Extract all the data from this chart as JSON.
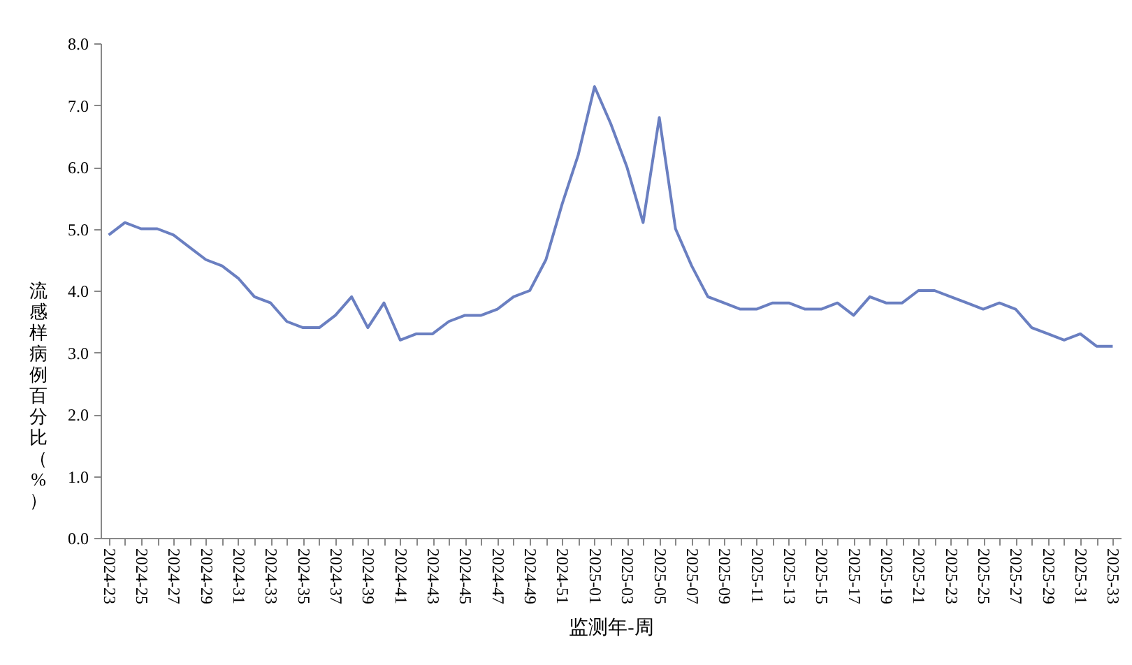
{
  "chart_data": {
    "type": "line",
    "xlabel": "监测年-周",
    "ylabel": "流感样病例百分比（%）",
    "categories": [
      "2024-23",
      null,
      "2024-25",
      null,
      "2024-27",
      null,
      "2024-29",
      null,
      "2024-31",
      null,
      "2024-33",
      null,
      "2024-35",
      null,
      "2024-37",
      null,
      "2024-39",
      null,
      "2024-41",
      null,
      "2024-43",
      null,
      "2024-45",
      null,
      "2024-47",
      null,
      "2024-49",
      null,
      "2024-51",
      null,
      "2025-01",
      null,
      "2025-03",
      null,
      "2025-05",
      null,
      "2025-07",
      null,
      "2025-09",
      null,
      "2025-11",
      null,
      "2025-13",
      null,
      "2025-15",
      null,
      "2025-17",
      null,
      "2025-19",
      null,
      "2025-21",
      null,
      "2025-23",
      null,
      "2025-25",
      null,
      "2025-27",
      null,
      "2025-29",
      null,
      "2025-31",
      null,
      "2025-33"
    ],
    "series": [
      {
        "color": "#6a7fc1",
        "values": [
          4.9,
          5.1,
          5.0,
          5.0,
          4.9,
          4.7,
          4.5,
          4.4,
          4.2,
          3.9,
          3.8,
          3.5,
          3.4,
          3.4,
          3.6,
          3.9,
          3.4,
          3.8,
          3.2,
          3.3,
          3.3,
          3.5,
          3.6,
          3.6,
          3.7,
          3.9,
          4.0,
          4.5,
          5.4,
          6.2,
          7.3,
          6.7,
          6.0,
          5.1,
          6.8,
          5.0,
          4.4,
          3.9,
          3.8,
          3.7,
          3.7,
          3.8,
          3.8,
          3.7,
          3.7,
          3.8,
          3.6,
          3.9,
          3.8,
          3.8,
          4.0,
          4.0,
          3.9,
          3.8,
          3.7,
          3.8,
          3.7,
          3.4,
          3.3,
          3.2,
          3.3,
          3.1,
          3.1
        ]
      }
    ],
    "ylim": [
      0,
      8
    ],
    "yticks": [
      {
        "value": 0,
        "label": "0.0"
      },
      {
        "value": 1,
        "label": "1.0"
      },
      {
        "value": 2,
        "label": "2.0"
      },
      {
        "value": 3,
        "label": "3.0"
      },
      {
        "value": 4,
        "label": "4.0"
      },
      {
        "value": 5,
        "label": "5.0"
      },
      {
        "value": 6,
        "label": "6.0"
      },
      {
        "value": 7,
        "label": "7.0"
      },
      {
        "value": 8,
        "label": "8.0"
      }
    ],
    "grid": false,
    "marker": "none",
    "line_style": "solid"
  }
}
